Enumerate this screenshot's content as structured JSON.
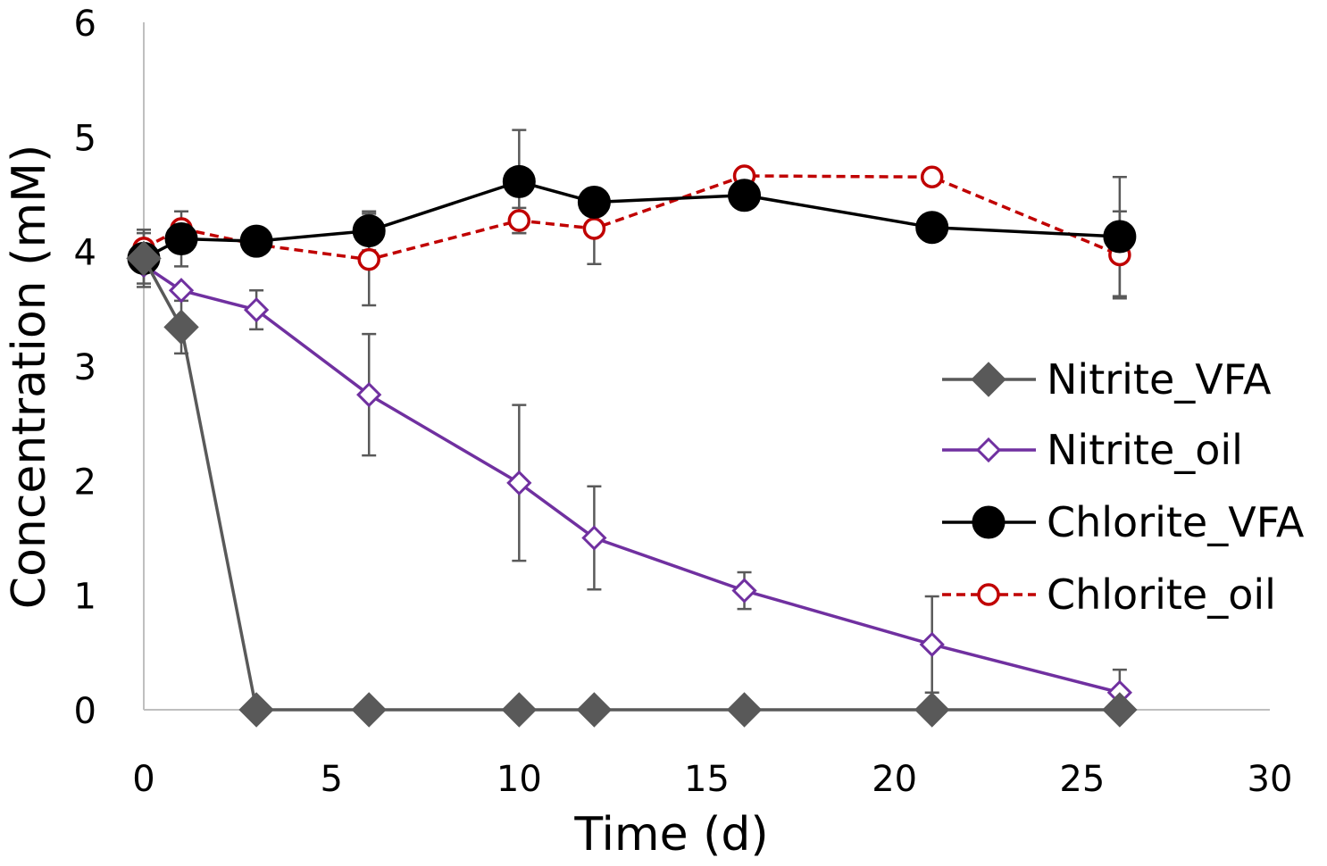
{
  "chart_data": {
    "type": "line",
    "title": "",
    "xlabel": "Time (d)",
    "ylabel": "Concentration (mM)",
    "xlim": [
      0,
      30
    ],
    "ylim": [
      0,
      6
    ],
    "x_ticks": [
      "0",
      "5",
      "10",
      "15",
      "20",
      "25",
      "30"
    ],
    "y_ticks": [
      "0",
      "1",
      "2",
      "3",
      "4",
      "5",
      "6"
    ],
    "grid": false,
    "legend_position": "right",
    "series": [
      {
        "name": "Nitrite_VFA",
        "color": "#595959",
        "marker": "diamond-filled",
        "line": "solid",
        "x": [
          0,
          1,
          3,
          6,
          10,
          12,
          16,
          21,
          26
        ],
        "values": [
          3.94,
          3.34,
          0,
          0,
          0,
          0,
          0,
          0,
          0
        ],
        "error": [
          0.22,
          0.23,
          0,
          0,
          0,
          0,
          0,
          0,
          0
        ]
      },
      {
        "name": "Nitrite_oil",
        "color": "#7030A0",
        "marker": "diamond-open",
        "line": "solid",
        "x": [
          0,
          1,
          3,
          6,
          10,
          12,
          16,
          21,
          26
        ],
        "values": [
          3.88,
          3.66,
          3.49,
          2.75,
          1.98,
          1.5,
          1.04,
          0.57,
          0.15
        ],
        "error": [
          0,
          0,
          0.17,
          0.53,
          0.68,
          0.45,
          0.16,
          0.42,
          0.2
        ]
      },
      {
        "name": "Chlorite_VFA",
        "color": "#000000",
        "marker": "circle-filled",
        "line": "solid",
        "x": [
          0,
          1,
          3,
          6,
          10,
          12,
          16,
          21,
          26
        ],
        "values": [
          3.94,
          4.11,
          4.09,
          4.18,
          4.61,
          4.43,
          4.49,
          4.21,
          4.13
        ],
        "error": [
          0.25,
          0.24,
          0,
          0.17,
          0.45,
          0,
          0,
          0,
          0.52
        ]
      },
      {
        "name": "Chlorite_oil",
        "color": "#C00000",
        "marker": "circle-open",
        "line": "dashed",
        "x": [
          0,
          1,
          3,
          6,
          10,
          12,
          16,
          21,
          26
        ],
        "values": [
          4.03,
          4.2,
          4.06,
          3.93,
          4.27,
          4.2,
          4.66,
          4.65,
          3.97
        ],
        "error": [
          0,
          0,
          0,
          0.4,
          0.11,
          0.31,
          0,
          0,
          0.38
        ]
      }
    ]
  }
}
